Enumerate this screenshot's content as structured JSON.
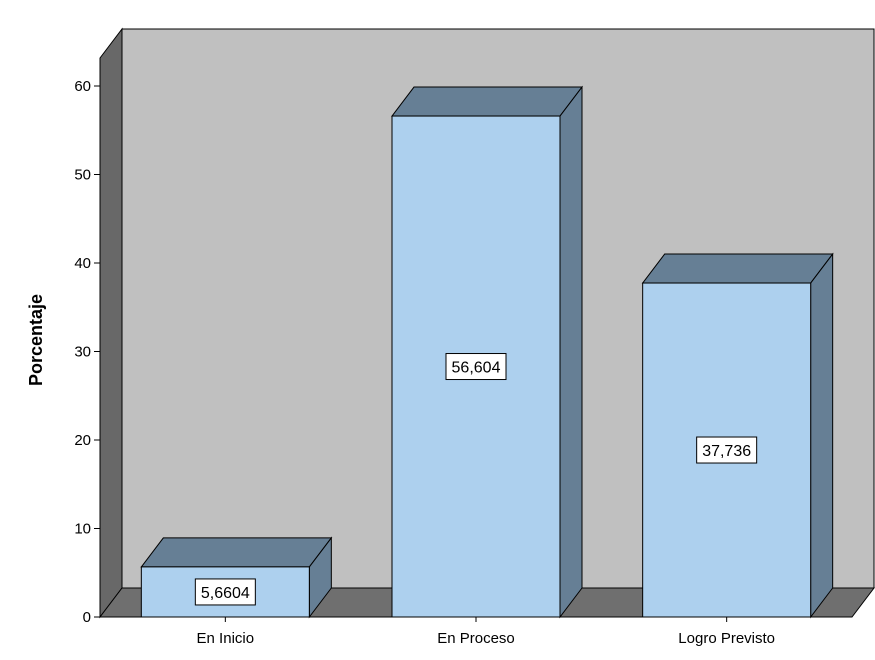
{
  "chart_data": {
    "type": "bar",
    "categories": [
      "En Inicio",
      "En Proceso",
      "Logro Previsto"
    ],
    "values": [
      5.6604,
      56.604,
      37.736
    ],
    "data_labels": [
      "5,6604",
      "56,604",
      "37,736"
    ],
    "title": "",
    "xlabel": "",
    "ylabel": "Porcentaje",
    "ylim": [
      0,
      60
    ],
    "yticks": [
      "0",
      "10",
      "20",
      "30",
      "40",
      "50",
      "60"
    ],
    "grid": false,
    "legend": "none",
    "style": "3d"
  },
  "colors": {
    "bar_front": "#ADD0EE",
    "bar_side": "#667F95",
    "bar_top": "#667F95",
    "back_wall": "#C0C0C0",
    "side_wall": "#686868",
    "floor": "#6F6F6F",
    "outline": "#000000",
    "label_box": "#FFFFFF"
  }
}
